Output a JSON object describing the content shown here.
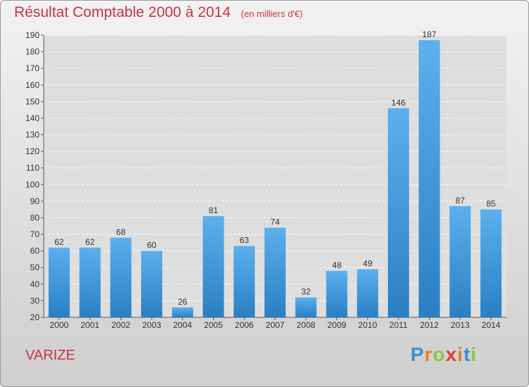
{
  "chart_data": {
    "type": "bar",
    "title": "Résultat Comptable 2000 à 2014",
    "subtitle": "(en milliers d'€)",
    "categories": [
      "2000",
      "2001",
      "2002",
      "2003",
      "2004",
      "2005",
      "2006",
      "2007",
      "2008",
      "2009",
      "2010",
      "2011",
      "2012",
      "2013",
      "2014"
    ],
    "values": [
      62,
      62,
      68,
      60,
      26,
      81,
      63,
      74,
      32,
      48,
      49,
      146,
      187,
      87,
      85
    ],
    "ylim": [
      20,
      190
    ],
    "yticks": [
      20,
      30,
      40,
      50,
      60,
      70,
      80,
      90,
      100,
      110,
      120,
      130,
      140,
      150,
      160,
      170,
      180,
      190
    ],
    "grid": true,
    "bar_color": "#3a8fd6",
    "label_color": "#333333"
  },
  "commune": "VARIZE",
  "logo": {
    "letters": [
      "P",
      "r",
      "o",
      "x",
      "i",
      "t",
      "i"
    ],
    "colors": [
      "#3a8fd6",
      "#e67e22",
      "#8dc63f",
      "#e53935",
      "#e67e22",
      "#3a8fd6",
      "#8dc63f"
    ]
  }
}
